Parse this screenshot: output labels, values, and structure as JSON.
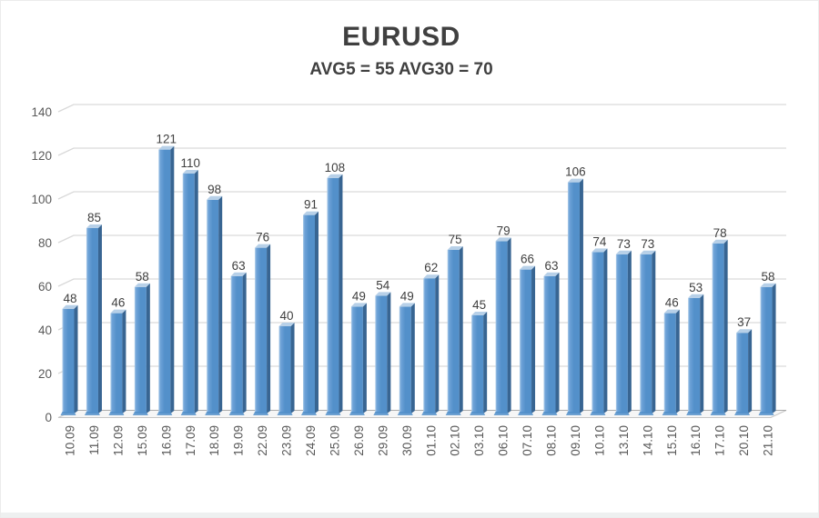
{
  "page": {
    "title": "EURUSD",
    "subtitle": "AVG5 = 55 AVG30 = 70"
  },
  "chart_data": {
    "type": "bar",
    "title": "EURUSD",
    "subtitle": "AVG5 = 55 AVG30 = 70",
    "xlabel": "",
    "ylabel": "",
    "categories": [
      "10.09",
      "11.09",
      "12.09",
      "15.09",
      "16.09",
      "17.09",
      "18.09",
      "19.09",
      "22.09",
      "23.09",
      "24.09",
      "25.09",
      "26.09",
      "29.09",
      "30.09",
      "01.10",
      "02.10",
      "03.10",
      "06.10",
      "07.10",
      "08.10",
      "09.10",
      "10.10",
      "13.10",
      "14.10",
      "15.10",
      "16.10",
      "17.10",
      "20.10",
      "21.10"
    ],
    "values": [
      48,
      85,
      46,
      58,
      121,
      110,
      98,
      63,
      76,
      40,
      91,
      108,
      49,
      54,
      49,
      62,
      75,
      45,
      79,
      66,
      63,
      106,
      74,
      73,
      73,
      46,
      53,
      78,
      37,
      58
    ],
    "ylim": [
      0,
      140
    ],
    "yticks": [
      0,
      20,
      40,
      60,
      80,
      100,
      120,
      140
    ],
    "grid": true,
    "legend": false,
    "style": "3d-bar",
    "colors": {
      "bar_light": "#aecde9",
      "bar_mid": "#6fa3d8",
      "bar_main": "#5390ca",
      "bar_shadow_face": "#386592",
      "bar_top_face": "#b7d0e8",
      "gridline": "#d9d9d9",
      "floor_fill": "#f6f6f6",
      "floor_edge": "#c6c6c6",
      "floor_back_edge": "#aaaaaa",
      "axis_label": "#595959",
      "value_label": "#3f3f3f",
      "title": "#404040"
    }
  }
}
